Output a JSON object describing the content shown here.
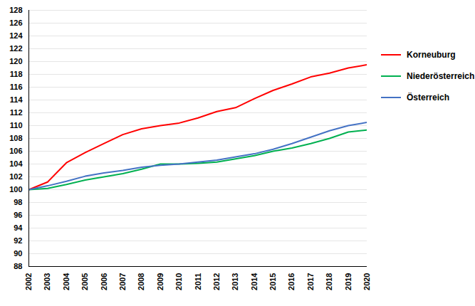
{
  "chart_data": {
    "type": "line",
    "x": [
      2002,
      2003,
      2004,
      2005,
      2006,
      2007,
      2008,
      2009,
      2010,
      2011,
      2012,
      2013,
      2014,
      2015,
      2016,
      2017,
      2018,
      2019,
      2020
    ],
    "series": [
      {
        "name": "Korneuburg",
        "color": "#ff0000",
        "values": [
          100.0,
          101.2,
          104.2,
          105.8,
          107.2,
          108.6,
          109.5,
          110.0,
          110.4,
          111.2,
          112.2,
          112.8,
          114.2,
          115.5,
          116.5,
          117.6,
          118.2,
          119.0,
          119.5
        ]
      },
      {
        "name": "Niederösterreich",
        "color": "#00b050",
        "values": [
          100.0,
          100.2,
          100.8,
          101.5,
          102.0,
          102.5,
          103.2,
          104.0,
          104.0,
          104.1,
          104.3,
          104.8,
          105.3,
          106.0,
          106.5,
          107.2,
          108.0,
          109.0,
          109.3
        ]
      },
      {
        "name": "Österreich",
        "color": "#4472c4",
        "values": [
          100.0,
          100.6,
          101.3,
          102.1,
          102.6,
          103.0,
          103.5,
          103.8,
          104.0,
          104.3,
          104.6,
          105.1,
          105.6,
          106.3,
          107.2,
          108.2,
          109.2,
          110.0,
          110.5
        ]
      }
    ],
    "xlim": [
      2002,
      2020
    ],
    "xticks": [
      2002,
      2003,
      2004,
      2005,
      2006,
      2007,
      2008,
      2009,
      2010,
      2011,
      2012,
      2013,
      2014,
      2015,
      2016,
      2017,
      2018,
      2019,
      2020
    ],
    "ylim": [
      88,
      128
    ],
    "yticks": [
      88,
      90,
      92,
      94,
      96,
      98,
      100,
      102,
      104,
      106,
      108,
      110,
      112,
      114,
      116,
      118,
      120,
      122,
      124,
      126,
      128
    ],
    "grid": true,
    "legend": "right"
  }
}
